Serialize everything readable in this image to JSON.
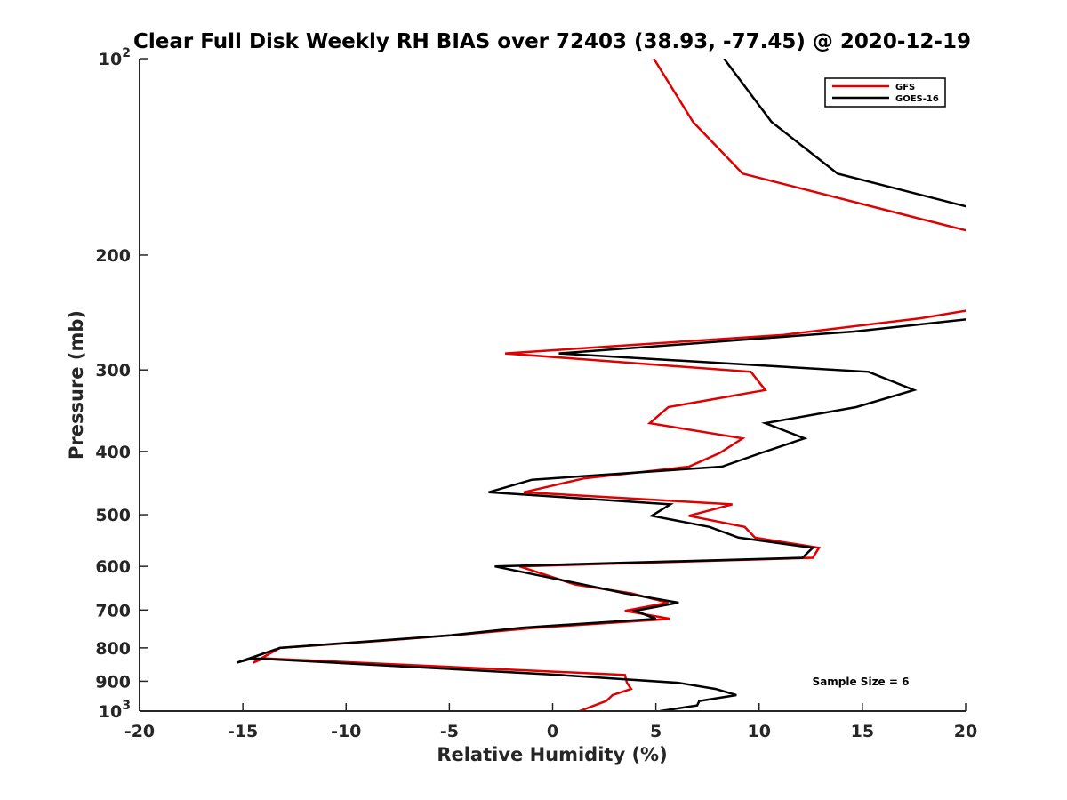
{
  "chart_data": {
    "type": "line",
    "title": "Clear Full Disk Weekly RH BIAS over 72403 (38.93, -77.45) @ 2020-12-19",
    "xlabel": "Relative Humidity (%)",
    "ylabel": "Pressure (mb)",
    "xlim": [
      -20,
      20
    ],
    "ylim": [
      100,
      1000
    ],
    "y_scale": "log",
    "y_reversed": true,
    "x_ticks": [
      "-20",
      "-15",
      "-10",
      "-5",
      "0",
      "5",
      "10",
      "15",
      "20"
    ],
    "x_tick_values": [
      -20,
      -15,
      -10,
      -5,
      0,
      5,
      10,
      15,
      20
    ],
    "y_ticks": [
      {
        "value": 100,
        "base": "10",
        "exp": "2"
      },
      {
        "value": 200,
        "label": "200"
      },
      {
        "value": 300,
        "label": "300"
      },
      {
        "value": 400,
        "label": "400"
      },
      {
        "value": 500,
        "label": "500"
      },
      {
        "value": 600,
        "label": "600"
      },
      {
        "value": 700,
        "label": "700"
      },
      {
        "value": 800,
        "label": "800"
      },
      {
        "value": 900,
        "label": "900"
      },
      {
        "value": 1000,
        "base": "10",
        "exp": "3"
      }
    ],
    "grid": false,
    "legend_position": "top-right",
    "annotation": "Sample Size = 6",
    "series": [
      {
        "name": "GFS",
        "color": "#e00000",
        "points": [
          [
            4.9,
            100
          ],
          [
            6.8,
            125
          ],
          [
            9.2,
            150
          ],
          [
            20.5,
            185
          ],
          [
            20.5,
            242
          ],
          [
            17.8,
            250
          ],
          [
            11.2,
            265
          ],
          [
            -2.3,
            283
          ],
          [
            9.6,
            302
          ],
          [
            10.3,
            322
          ],
          [
            5.6,
            342
          ],
          [
            4.7,
            362
          ],
          [
            9.2,
            382
          ],
          [
            8.1,
            402
          ],
          [
            6.6,
            422
          ],
          [
            1.5,
            440
          ],
          [
            -1.4,
            462
          ],
          [
            8.7,
            482
          ],
          [
            6.6,
            502
          ],
          [
            9.3,
            522
          ],
          [
            9.8,
            542
          ],
          [
            12.9,
            562
          ],
          [
            12.6,
            582
          ],
          [
            -1.6,
            600
          ],
          [
            1.1,
            640
          ],
          [
            3.8,
            660
          ],
          [
            5.6,
            682
          ],
          [
            3.5,
            702
          ],
          [
            5.7,
            722
          ],
          [
            -0.8,
            745
          ],
          [
            -4.8,
            765
          ],
          [
            -8.2,
            780
          ],
          [
            -13.2,
            800
          ],
          [
            -14.5,
            843
          ],
          [
            -14.0,
            830
          ],
          [
            3.5,
            880
          ],
          [
            3.6,
            905
          ],
          [
            3.8,
            925
          ],
          [
            2.9,
            945
          ],
          [
            2.6,
            965
          ],
          [
            1.3,
            1000
          ]
        ]
      },
      {
        "name": "GOES-16",
        "color": "#000000",
        "points": [
          [
            8.3,
            100
          ],
          [
            10.6,
            125
          ],
          [
            13.8,
            150
          ],
          [
            20.5,
            170
          ],
          [
            20.5,
            250
          ],
          [
            14.6,
            262
          ],
          [
            0.3,
            283
          ],
          [
            15.3,
            302
          ],
          [
            17.5,
            322
          ],
          [
            14.7,
            342
          ],
          [
            10.3,
            362
          ],
          [
            12.2,
            382
          ],
          [
            10.1,
            402
          ],
          [
            8.2,
            422
          ],
          [
            -1.0,
            442
          ],
          [
            -3.1,
            462
          ],
          [
            5.7,
            482
          ],
          [
            4.8,
            502
          ],
          [
            7.6,
            522
          ],
          [
            9.0,
            542
          ],
          [
            12.6,
            562
          ],
          [
            12.1,
            582
          ],
          [
            -2.8,
            600
          ],
          [
            1.5,
            640
          ],
          [
            3.5,
            660
          ],
          [
            6.1,
            682
          ],
          [
            4.0,
            702
          ],
          [
            5.0,
            722
          ],
          [
            -1.5,
            745
          ],
          [
            -4.9,
            765
          ],
          [
            -13.2,
            800
          ],
          [
            -15.3,
            843
          ],
          [
            -14.5,
            830
          ],
          [
            0.3,
            880
          ],
          [
            6.1,
            905
          ],
          [
            7.9,
            925
          ],
          [
            8.9,
            945
          ],
          [
            7.1,
            965
          ],
          [
            7.0,
            980
          ],
          [
            5.2,
            1000
          ]
        ]
      }
    ]
  }
}
